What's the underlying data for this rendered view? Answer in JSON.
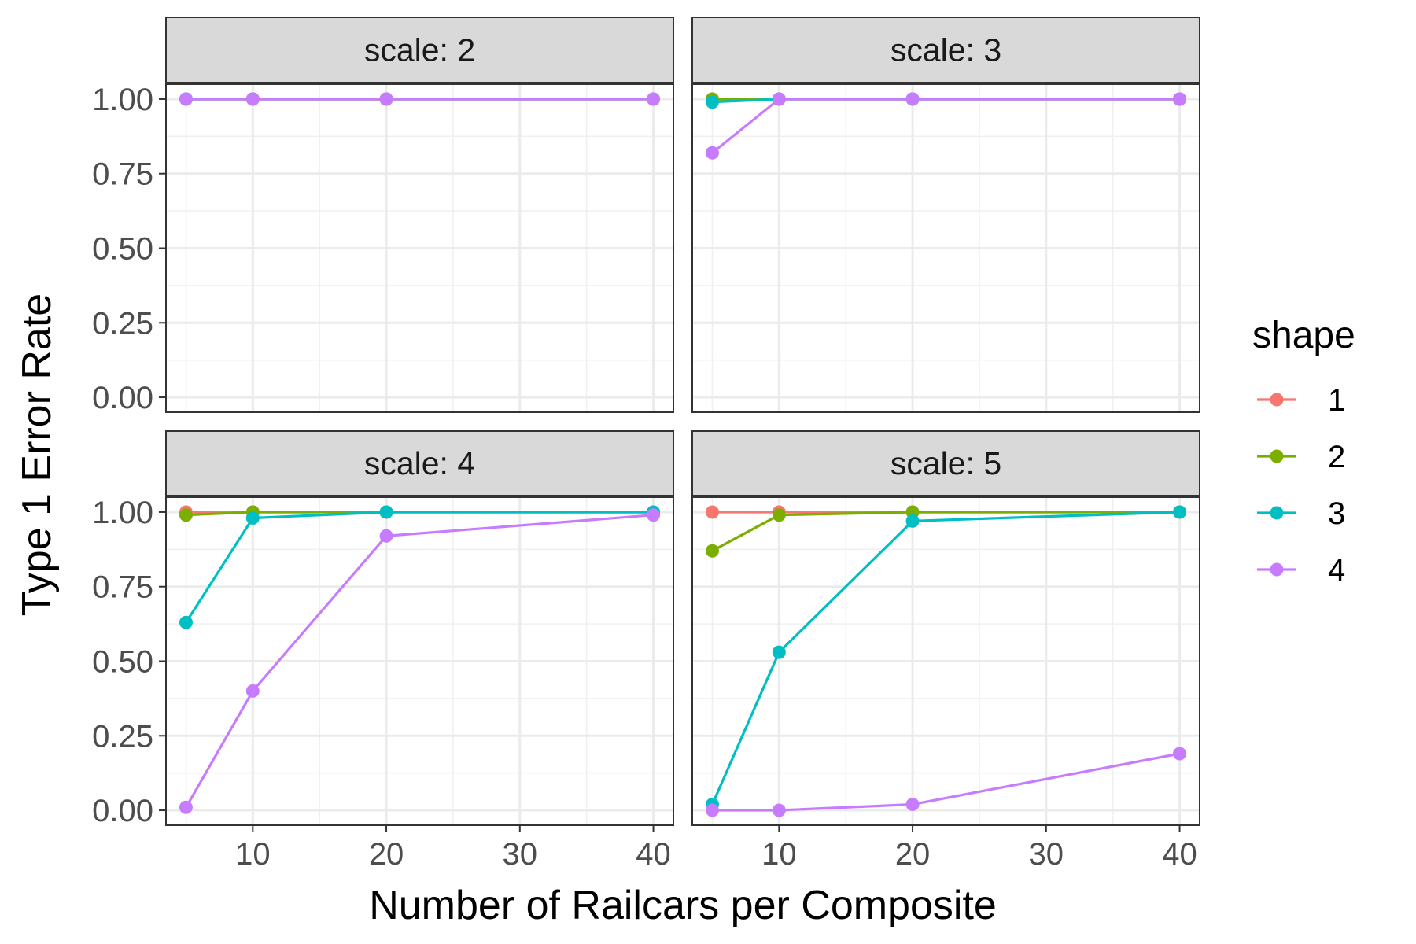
{
  "chart_data": {
    "type": "line",
    "facet_variable": "scale",
    "panels": [
      {
        "strip": "scale: 2",
        "series": [
          {
            "name": "1",
            "values": [
              1,
              1,
              1,
              1
            ]
          },
          {
            "name": "2",
            "values": [
              1,
              1,
              1,
              1
            ]
          },
          {
            "name": "3",
            "values": [
              1,
              1,
              1,
              1
            ]
          },
          {
            "name": "4",
            "values": [
              1,
              1,
              1,
              1
            ]
          }
        ]
      },
      {
        "strip": "scale: 3",
        "series": [
          {
            "name": "1",
            "values": [
              1,
              1,
              1,
              1
            ]
          },
          {
            "name": "2",
            "values": [
              1,
              1,
              1,
              1
            ]
          },
          {
            "name": "3",
            "values": [
              0.99,
              1,
              1,
              1
            ]
          },
          {
            "name": "4",
            "values": [
              0.82,
              1,
              1,
              1
            ]
          }
        ]
      },
      {
        "strip": "scale: 4",
        "series": [
          {
            "name": "1",
            "values": [
              1,
              1,
              1,
              1
            ]
          },
          {
            "name": "2",
            "values": [
              0.99,
              1,
              1,
              1
            ]
          },
          {
            "name": "3",
            "values": [
              0.63,
              0.98,
              1,
              1
            ]
          },
          {
            "name": "4",
            "values": [
              0.01,
              0.4,
              0.92,
              0.99
            ]
          }
        ]
      },
      {
        "strip": "scale: 5",
        "series": [
          {
            "name": "1",
            "values": [
              1,
              1,
              1,
              1
            ]
          },
          {
            "name": "2",
            "values": [
              0.87,
              0.99,
              1,
              1
            ]
          },
          {
            "name": "3",
            "values": [
              0.02,
              0.53,
              0.97,
              1
            ]
          },
          {
            "name": "4",
            "values": [
              0,
              0,
              0.02,
              0.19
            ]
          }
        ]
      }
    ],
    "x": [
      5,
      10,
      20,
      40
    ],
    "xlabel": "Number of Railcars per Composite",
    "ylabel": "Type 1 Error Rate",
    "x_ticks": [
      "10",
      "20",
      "30",
      "40"
    ],
    "y_ticks": [
      "0.00",
      "0.25",
      "0.50",
      "0.75",
      "1.00"
    ],
    "xlim": [
      3.5,
      41.5
    ],
    "ylim": [
      -0.05,
      1.05
    ],
    "grid": true,
    "legend": {
      "title": "shape",
      "position": "right",
      "entries": [
        "1",
        "2",
        "3",
        "4"
      ]
    },
    "colors": {
      "1": "#F8766D",
      "2": "#7CAE00",
      "3": "#00BFC4",
      "4": "#C77CFF"
    }
  }
}
